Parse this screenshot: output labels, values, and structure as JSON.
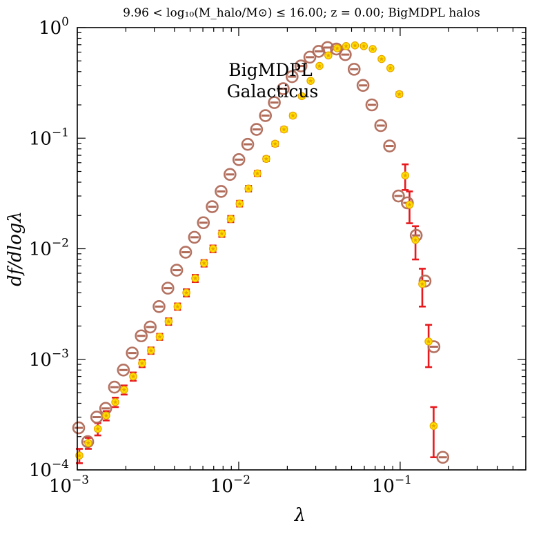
{
  "chart_data": {
    "type": "scatter",
    "title": "9.96 < log₁₀(M_halo/M⊙) ≤ 16.00; z = 0.00; BigMDPL halos",
    "xlabel": "λ",
    "ylabel": "df/dlogλ",
    "xscale": "log",
    "yscale": "log",
    "xlim": [
      0.001,
      0.6
    ],
    "ylim": [
      0.0001,
      1.0
    ],
    "x_ticks": [
      {
        "base": "10",
        "exp": "−3"
      },
      {
        "base": "10",
        "exp": "−2"
      },
      {
        "base": "10",
        "exp": "−1"
      }
    ],
    "y_ticks": [
      {
        "base": "10",
        "exp": "−4"
      },
      {
        "base": "10",
        "exp": "−3"
      },
      {
        "base": "10",
        "exp": "−2"
      },
      {
        "base": "10",
        "exp": "−1"
      },
      {
        "base": "10",
        "exp": "0"
      }
    ],
    "legend": [
      "BigMDPL",
      "Galacticus"
    ],
    "legend_position": "top-center",
    "colors": {
      "bigmdpl_marker": "#b06a58",
      "galacticus_fill": "#ffe000",
      "galacticus_edge": "#e8a400",
      "error_bar": "#e8181c"
    },
    "series": [
      {
        "name": "BigMDPL",
        "marker": "open-circle",
        "x": [
          0.00102,
          0.00116,
          0.00132,
          0.0015,
          0.0017,
          0.00193,
          0.00219,
          0.00249,
          0.00283,
          0.00321,
          0.00364,
          0.00413,
          0.00469,
          0.00532,
          0.00604,
          0.00685,
          0.00778,
          0.00883,
          0.01002,
          0.01137,
          0.0129,
          0.01464,
          0.01662,
          0.01886,
          0.02141,
          0.0243,
          0.02757,
          0.03129,
          0.03551,
          0.04029,
          0.04572,
          0.05188,
          0.05887,
          0.0668,
          0.0758,
          0.086,
          0.0976,
          0.1108,
          0.1257,
          0.1426,
          0.1619,
          0.1837
        ],
        "y": [
          0.00024,
          0.00018,
          0.0003,
          0.00036,
          0.00056,
          0.0008,
          0.00114,
          0.00163,
          0.00196,
          0.003,
          0.0044,
          0.0064,
          0.0093,
          0.0127,
          0.0172,
          0.024,
          0.033,
          0.047,
          0.064,
          0.088,
          0.12,
          0.16,
          0.21,
          0.28,
          0.36,
          0.45,
          0.54,
          0.61,
          0.66,
          0.64,
          0.57,
          0.42,
          0.3,
          0.2,
          0.13,
          0.085,
          0.03,
          0.026,
          0.0132,
          0.0051,
          0.0013,
          0.00013
        ]
      },
      {
        "name": "Galacticus",
        "marker": "star-filled",
        "x": [
          0.00103,
          0.00117,
          0.00134,
          0.00151,
          0.00172,
          0.00195,
          0.00222,
          0.00252,
          0.00286,
          0.00324,
          0.00368,
          0.00418,
          0.00474,
          0.00538,
          0.0061,
          0.00693,
          0.00786,
          0.00893,
          0.01013,
          0.0115,
          0.01305,
          0.01481,
          0.01681,
          0.01907,
          0.02165,
          0.02457,
          0.02788,
          0.03164,
          0.03591,
          0.04075,
          0.04625,
          0.0525,
          0.05955,
          0.06758,
          0.0767,
          0.08702,
          0.09875,
          0.1075,
          0.1143,
          0.1244,
          0.1371,
          0.15,
          0.1612
        ],
        "y": [
          0.000135,
          0.000175,
          0.000235,
          0.00031,
          0.00041,
          0.00053,
          0.0007,
          0.00092,
          0.0012,
          0.0016,
          0.0022,
          0.003,
          0.004,
          0.0054,
          0.0074,
          0.01,
          0.0137,
          0.0186,
          0.0256,
          0.035,
          0.048,
          0.065,
          0.089,
          0.12,
          0.16,
          0.24,
          0.33,
          0.45,
          0.56,
          0.65,
          0.68,
          0.69,
          0.68,
          0.64,
          0.52,
          0.43,
          0.25,
          0.046,
          0.025,
          0.012,
          0.0048,
          0.00145,
          0.00025
        ],
        "y_err_low": [
          2e-05,
          2e-05,
          3e-05,
          3e-05,
          4e-05,
          5e-05,
          6e-05,
          7e-05,
          8e-05,
          0.0001,
          0.00015,
          0.0002,
          0.0003,
          0.0004,
          0.0005,
          0.0007,
          0.0009,
          0.0012,
          0.0015,
          0.002,
          0.0025,
          0.003,
          0.004,
          0.005,
          0.006,
          0.007,
          0.008,
          0.009,
          0.01,
          0.01,
          0.01,
          0.01,
          0.01,
          0.01,
          0.01,
          0.01,
          0.01,
          0.012,
          0.008,
          0.004,
          0.0018,
          0.0006,
          0.00012
        ],
        "y_err_high": [
          2e-05,
          2e-05,
          3e-05,
          3e-05,
          4e-05,
          5e-05,
          6e-05,
          7e-05,
          8e-05,
          0.0001,
          0.00015,
          0.0002,
          0.0003,
          0.0004,
          0.0005,
          0.0007,
          0.0009,
          0.0012,
          0.0015,
          0.002,
          0.0025,
          0.003,
          0.004,
          0.005,
          0.006,
          0.007,
          0.008,
          0.009,
          0.01,
          0.01,
          0.01,
          0.01,
          0.01,
          0.01,
          0.01,
          0.01,
          0.01,
          0.012,
          0.008,
          0.004,
          0.0018,
          0.0006,
          0.00012
        ]
      }
    ]
  }
}
